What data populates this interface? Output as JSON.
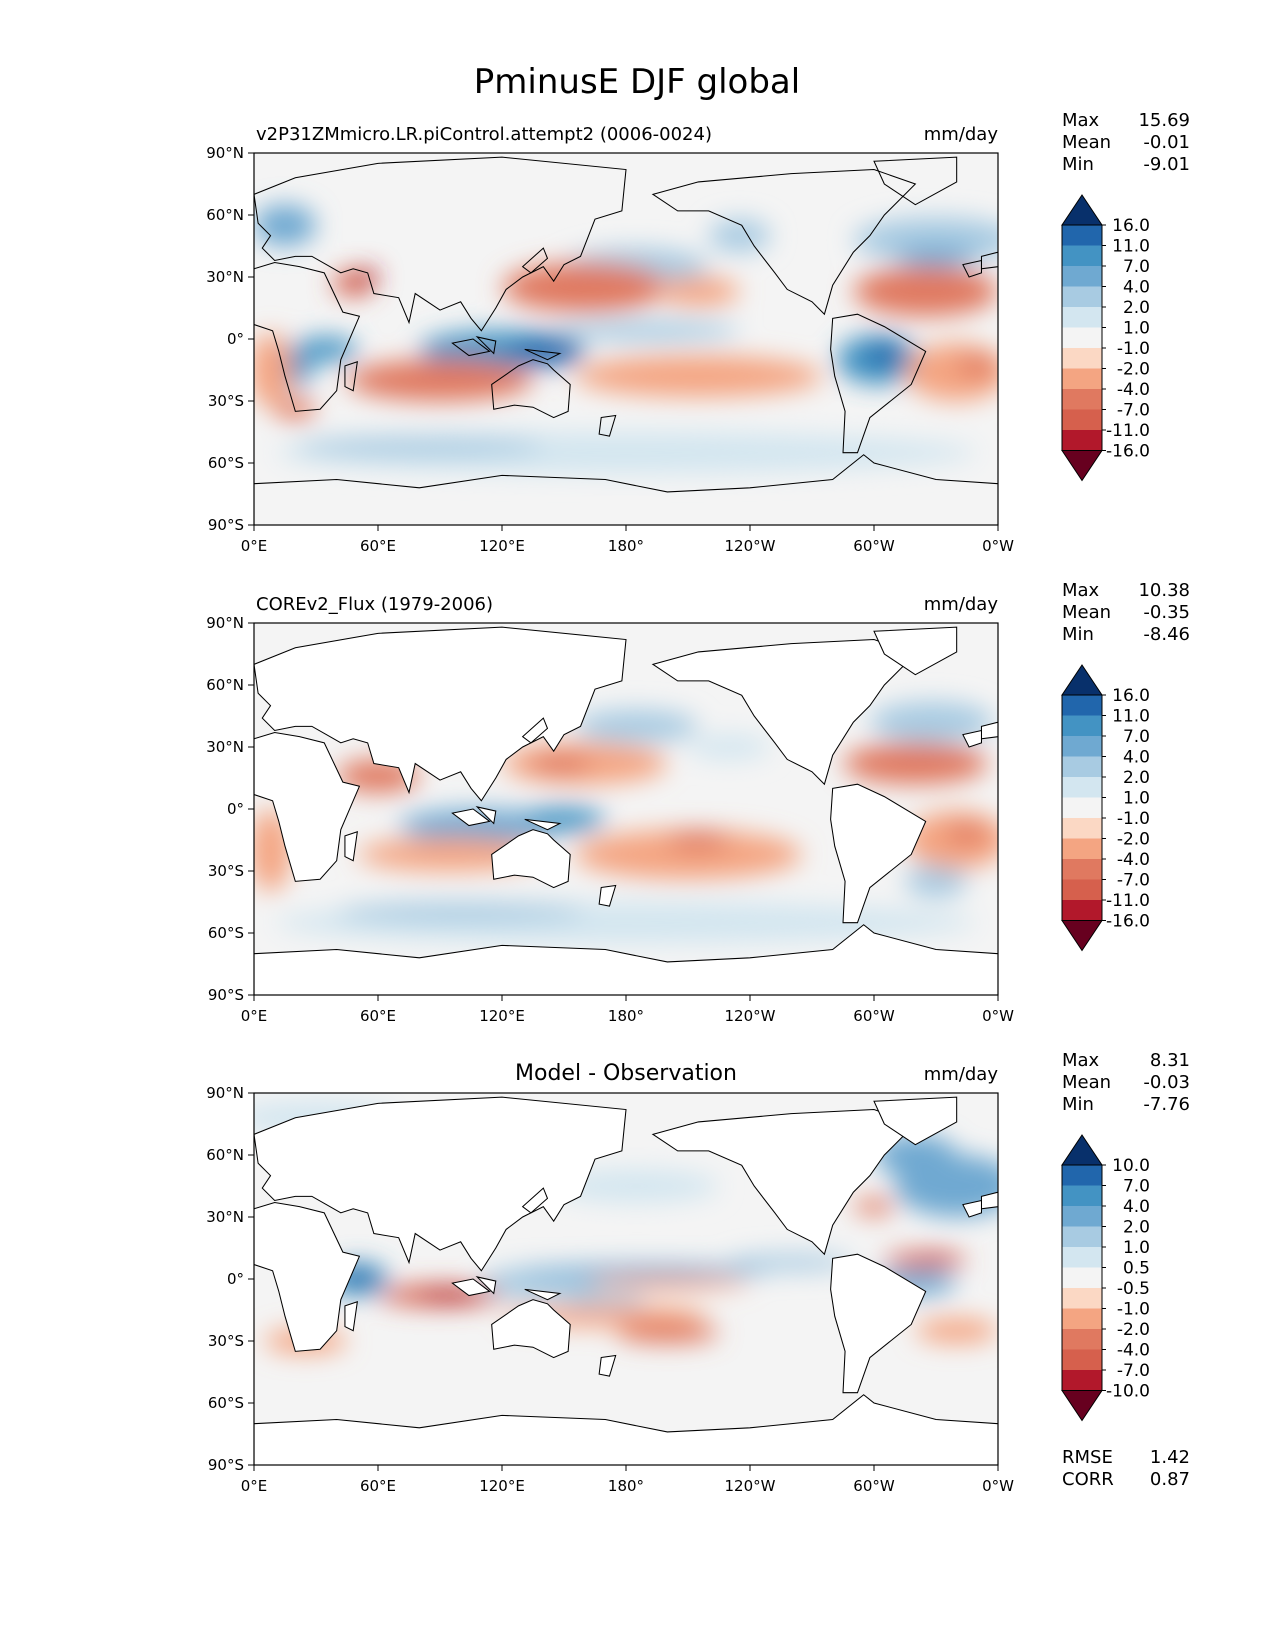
{
  "title": "PminusE DJF global",
  "colors": {
    "blue": [
      "#08306b",
      "#2166ac",
      "#4393c3",
      "#6fa9d1",
      "#a8cbe2",
      "#d3e6f0",
      "#f4f4f4"
    ],
    "red": [
      "#fbd8c4",
      "#f4a582",
      "#e07960",
      "#d6604d",
      "#b2182b",
      "#67001f"
    ],
    "land": "#ffffff",
    "ocean_neutral": "#f4f4f4"
  },
  "lon_ticks": [
    "0°E",
    "60°E",
    "120°E",
    "180°",
    "120°W",
    "60°W",
    "0°W"
  ],
  "lat_ticks": [
    "90°N",
    "60°N",
    "30°N",
    "0°",
    "30°S",
    "60°S",
    "90°S"
  ],
  "panels": [
    {
      "id": "model",
      "title_left": "v2P31ZMmicro.LR.piControl.attempt2 (0006-0024)",
      "title_center": "",
      "units": "mm/day",
      "stats": [
        {
          "label": "Max",
          "value": "15.69"
        },
        {
          "label": "Mean",
          "value": "-0.01"
        },
        {
          "label": "Min",
          "value": "-9.01"
        }
      ],
      "colorbar_levels": [
        "16.0",
        "11.0",
        "7.0",
        "4.0",
        "2.0",
        "1.0",
        "-1.0",
        "-2.0",
        "-4.0",
        "-7.0",
        "-11.0",
        "-16.0"
      ],
      "extra_stats": []
    },
    {
      "id": "obs",
      "title_left": "COREv2_Flux (1979-2006)",
      "title_center": "",
      "units": "mm/day",
      "stats": [
        {
          "label": "Max",
          "value": "10.38"
        },
        {
          "label": "Mean",
          "value": "-0.35"
        },
        {
          "label": "Min",
          "value": "-8.46"
        }
      ],
      "colorbar_levels": [
        "16.0",
        "11.0",
        "7.0",
        "4.0",
        "2.0",
        "1.0",
        "-1.0",
        "-2.0",
        "-4.0",
        "-7.0",
        "-11.0",
        "-16.0"
      ],
      "extra_stats": []
    },
    {
      "id": "diff",
      "title_left": "",
      "title_center": "Model - Observation",
      "units": "mm/day",
      "stats": [
        {
          "label": "Max",
          "value": "8.31"
        },
        {
          "label": "Mean",
          "value": "-0.03"
        },
        {
          "label": "Min",
          "value": "-7.76"
        }
      ],
      "colorbar_levels": [
        "10.0",
        "7.0",
        "4.0",
        "2.0",
        "1.0",
        "0.5",
        "-0.5",
        "-1.0",
        "-2.0",
        "-4.0",
        "-7.0",
        "-10.0"
      ],
      "extra_stats": [
        {
          "label": "RMSE",
          "value": "1.42"
        },
        {
          "label": "CORR",
          "value": "0.87"
        }
      ]
    }
  ]
}
